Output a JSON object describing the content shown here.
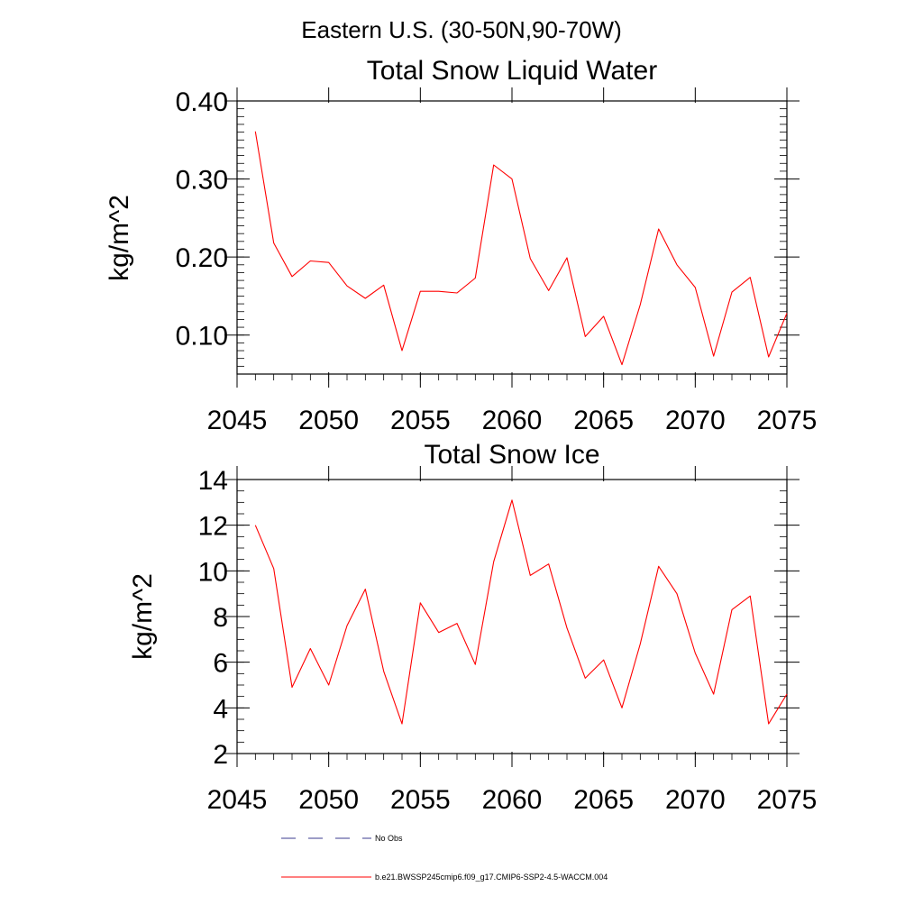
{
  "suptitle": "Eastern U.S. (30-50N,90-70W)",
  "colors": {
    "series": "#ff0000",
    "axis": "#000000",
    "no_obs": "#3b3b8f"
  },
  "legend": {
    "no_obs_label": "No Obs",
    "series_label": "b.e21.BWSSP245cmip6.f09_g17.CMIP6-SSP2-4.5-WACCM.004"
  },
  "chart_data": [
    {
      "type": "line",
      "title": "Total Snow Liquid Water",
      "ylabel": "kg/m^2",
      "xlabel": "",
      "xlim": [
        2045,
        2075
      ],
      "ylim": [
        0.05,
        0.4
      ],
      "xticks": [
        2045,
        2050,
        2055,
        2060,
        2065,
        2070,
        2075
      ],
      "yticks": [
        0.1,
        0.2,
        0.3,
        0.4
      ],
      "ytick_labels": [
        "0.10",
        "0.20",
        "0.30",
        "0.40"
      ],
      "x": [
        2046,
        2047,
        2048,
        2049,
        2050,
        2051,
        2052,
        2053,
        2054,
        2055,
        2056,
        2057,
        2058,
        2059,
        2060,
        2061,
        2062,
        2063,
        2064,
        2065,
        2066,
        2067,
        2068,
        2069,
        2070,
        2071,
        2072,
        2073,
        2074,
        2075
      ],
      "series": [
        {
          "name": "b.e21.BWSSP245cmip6.f09_g17.CMIP6-SSP2-4.5-WACCM.004",
          "values": [
            0.361,
            0.218,
            0.175,
            0.195,
            0.193,
            0.163,
            0.147,
            0.164,
            0.08,
            0.156,
            0.156,
            0.154,
            0.173,
            0.318,
            0.3,
            0.198,
            0.157,
            0.199,
            0.098,
            0.124,
            0.062,
            0.139,
            0.236,
            0.19,
            0.161,
            0.073,
            0.155,
            0.174,
            0.072,
            0.128
          ]
        }
      ],
      "grid": false,
      "legend": "below"
    },
    {
      "type": "line",
      "title": "Total Snow Ice",
      "ylabel": "kg/m^2",
      "xlabel": "",
      "xlim": [
        2045,
        2075
      ],
      "ylim": [
        2,
        14
      ],
      "xticks": [
        2045,
        2050,
        2055,
        2060,
        2065,
        2070,
        2075
      ],
      "yticks": [
        2,
        4,
        6,
        8,
        10,
        12,
        14
      ],
      "ytick_labels": [
        "2",
        "4",
        "6",
        "8",
        "10",
        "12",
        "14"
      ],
      "x": [
        2046,
        2047,
        2048,
        2049,
        2050,
        2051,
        2052,
        2053,
        2054,
        2055,
        2056,
        2057,
        2058,
        2059,
        2060,
        2061,
        2062,
        2063,
        2064,
        2065,
        2066,
        2067,
        2068,
        2069,
        2070,
        2071,
        2072,
        2073,
        2074,
        2075
      ],
      "series": [
        {
          "name": "b.e21.BWSSP245cmip6.f09_g17.CMIP6-SSP2-4.5-WACCM.004",
          "values": [
            12.0,
            10.1,
            4.9,
            6.6,
            5.0,
            7.6,
            9.2,
            5.6,
            3.3,
            8.6,
            7.3,
            7.7,
            5.9,
            10.4,
            13.1,
            9.8,
            10.3,
            7.5,
            5.3,
            6.1,
            4.0,
            6.8,
            10.2,
            9.0,
            6.4,
            4.6,
            8.3,
            8.9,
            3.3,
            4.6
          ]
        }
      ],
      "grid": false,
      "legend": "below"
    }
  ]
}
